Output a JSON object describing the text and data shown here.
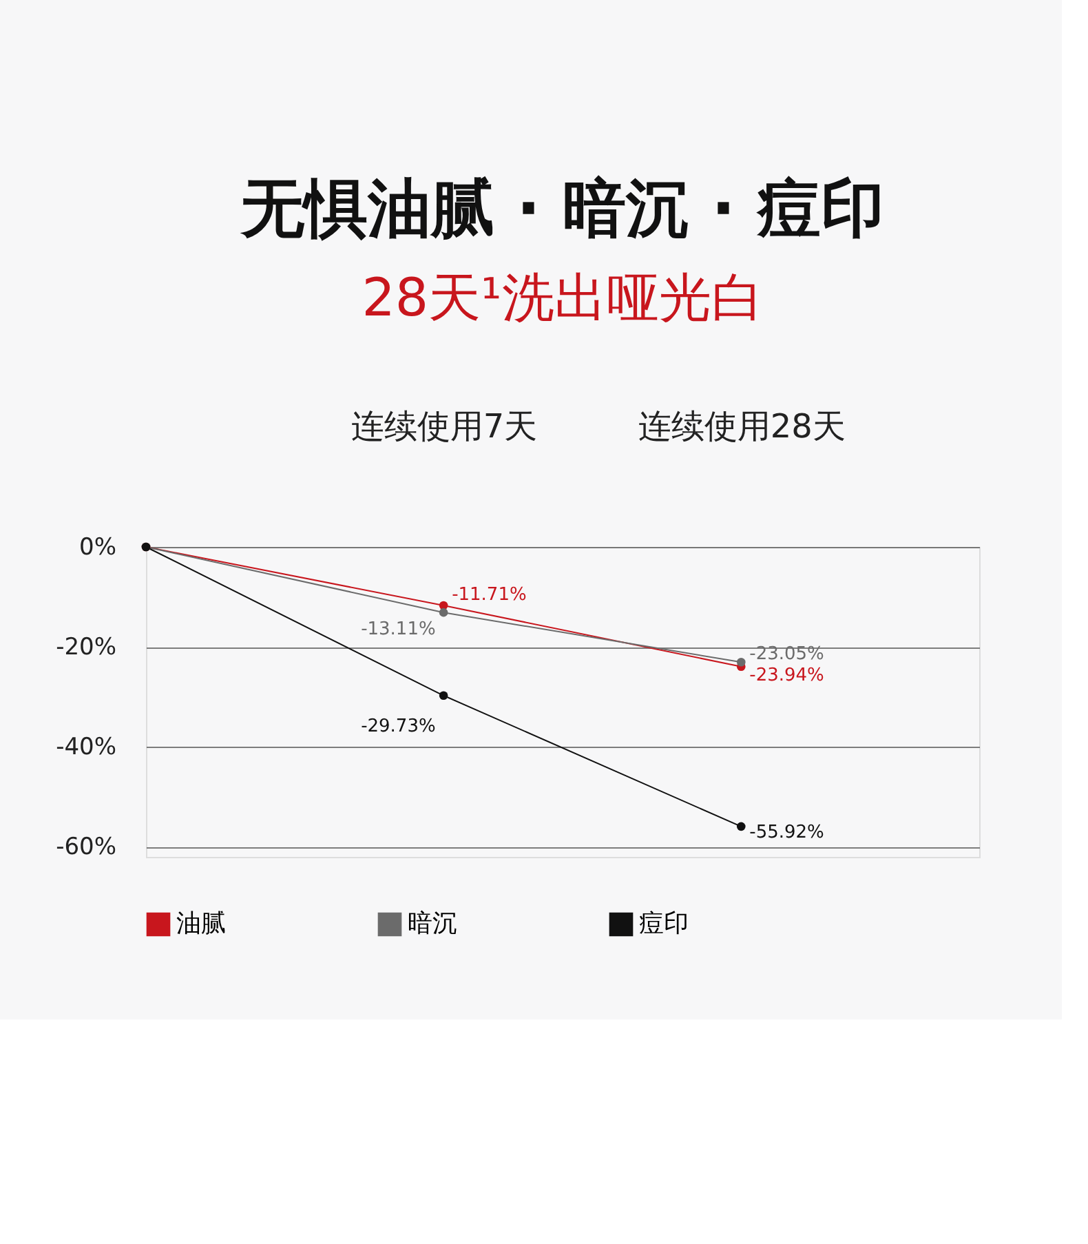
{
  "chart_data": {
    "type": "line",
    "title": "无惧油腻 · 暗沉 · 痘印",
    "subtitle": "28天¹洗出哑光白",
    "categories": [
      null,
      "连续使用7天",
      "连续使用28天"
    ],
    "series": [
      {
        "name": "油腻",
        "color": "#c8161d",
        "values": [
          0,
          -11.71,
          -23.94
        ],
        "value_labels": [
          null,
          "-11.71%",
          "-23.94%"
        ]
      },
      {
        "name": "暗沉",
        "color": "#6b6b6b",
        "values": [
          0,
          -13.11,
          -23.05
        ],
        "value_labels": [
          null,
          "-13.11%",
          "-23.05%"
        ]
      },
      {
        "name": "痘印",
        "color": "#111111",
        "values": [
          0,
          -29.73,
          -55.92
        ],
        "value_labels": [
          null,
          "-29.73%",
          "-55.92%"
        ]
      }
    ],
    "ylim": [
      -62,
      0
    ],
    "yticks": [
      {
        "value": 0,
        "label": "0%"
      },
      {
        "value": -20,
        "label": "-20%"
      },
      {
        "value": -40,
        "label": "-40%"
      },
      {
        "value": -60,
        "label": "-60%"
      }
    ],
    "grid": "y",
    "legend": "bottom",
    "marker": "circle",
    "line_style": "solid"
  }
}
